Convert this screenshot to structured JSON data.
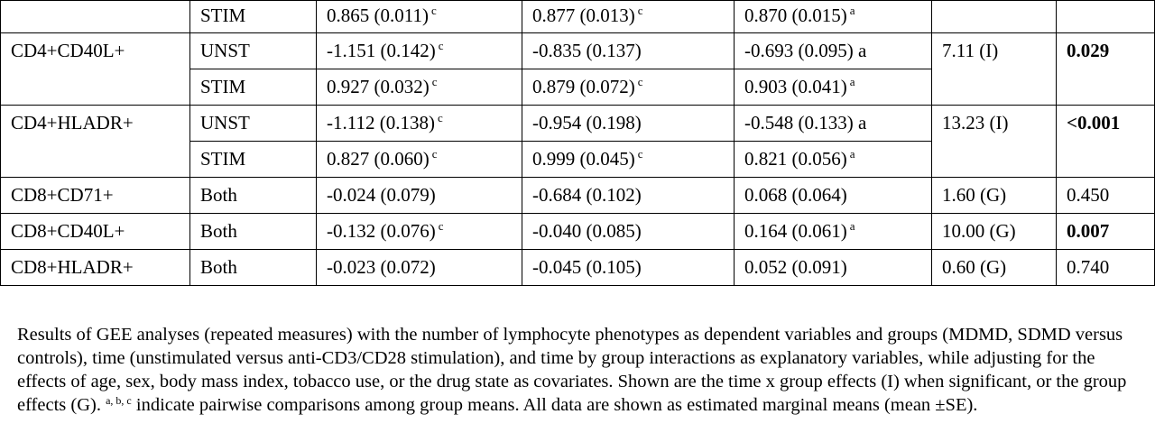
{
  "rows": [
    {
      "phenotype": "",
      "cond": "STIM",
      "c1": "0.865 (0.011)",
      "s1": "c",
      "c2": "0.877 (0.013)",
      "s2": "c",
      "c3": "0.870 (0.015)",
      "s3": "a",
      "chi": "",
      "p": "",
      "p_bold": false
    },
    {
      "phenotype": "CD4+CD40L+",
      "cond": "UNST",
      "c1": "-1.151 (0.142)",
      "s1": "c",
      "c2": "-0.835 (0.137)",
      "s2": "",
      "c3": "-0.693 (0.095) a",
      "s3": "",
      "chi": "7.11 (I)",
      "p": "0.029",
      "p_bold": true
    },
    {
      "phenotype": "",
      "cond": "STIM",
      "c1": "0.927 (0.032)",
      "s1": "c",
      "c2": "0.879 (0.072)",
      "s2": "c",
      "c3": "0.903 (0.041)",
      "s3": "a"
    },
    {
      "phenotype": "CD4+HLADR+",
      "cond": "UNST",
      "c1": "-1.112 (0.138)",
      "s1": "c",
      "c2": "-0.954 (0.198)",
      "s2": "",
      "c3": "-0.548 (0.133) a",
      "s3": "",
      "chi": "13.23 (I)",
      "p": "<0.001",
      "p_bold": true
    },
    {
      "phenotype": "",
      "cond": "STIM",
      "c1": "0.827 (0.060)",
      "s1": "c",
      "c2": "0.999 (0.045)",
      "s2": "c",
      "c3": "0.821 (0.056)",
      "s3": "a"
    },
    {
      "phenotype": "CD8+CD71+",
      "cond": "Both",
      "c1": "-0.024 (0.079)",
      "s1": "",
      "c2": "-0.684 (0.102)",
      "s2": "",
      "c3": "0.068 (0.064)",
      "s3": "",
      "chi": "1.60 (G)",
      "p": "0.450",
      "p_bold": false
    },
    {
      "phenotype": "CD8+CD40L+",
      "cond": "Both",
      "c1": "-0.132 (0.076)",
      "s1": "c",
      "c2": "-0.040 (0.085)",
      "s2": "",
      "c3": "0.164 (0.061)",
      "s3": "a",
      "chi": "10.00 (G)",
      "p": "0.007",
      "p_bold": true
    },
    {
      "phenotype": "CD8+HLADR+",
      "cond": "Both",
      "c1": "-0.023 (0.072)",
      "s1": "",
      "c2": "-0.045 (0.105)",
      "s2": "",
      "c3": "0.052 (0.091)",
      "s3": "",
      "chi": "0.60 (G)",
      "p": "0.740",
      "p_bold": false
    }
  ],
  "footnote": {
    "part1": "Results of GEE analyses (repeated measures) with the number of lymphocyte phenotypes as dependent variables and groups (MDMD, SDMD versus controls), time (unstimulated versus anti-CD3/CD28 stimulation), and time by group interactions as explanatory variables, while adjusting for the effects of age, sex, body mass index, tobacco use, or the drug state as covariates. Shown are the time x group effects (I) when significant, or the group effects (G).",
    "sup": "a, b, c",
    "part2": " indicate pairwise comparisons among group means. All data are shown as estimated marginal means (mean ±SE)."
  }
}
